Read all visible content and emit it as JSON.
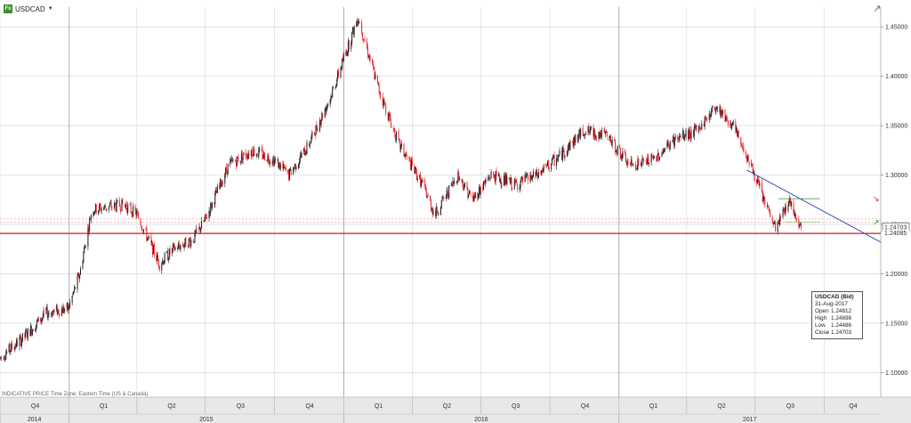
{
  "header": {
    "badge": "Fx",
    "symbol": "USDCAD",
    "caret": "▼"
  },
  "footer_note": "INDICATIVE PRICE   Time Zone: Eastern Time (US & Canada)",
  "last_price_label": "1.24703",
  "support_label": "1.24085",
  "info": {
    "title": "USDCAD (Bid)",
    "date": "31-Aug-2017",
    "rows": [
      {
        "k": "Open",
        "v": "1.24812"
      },
      {
        "k": "High",
        "v": "1.24898"
      },
      {
        "k": "Low",
        "v": "1.24486"
      },
      {
        "k": "Close",
        "v": "1.24703"
      }
    ]
  },
  "colors": {
    "up": "#1a1a1a",
    "down": "#e8202a",
    "trend": "#3b4fb0",
    "support": "#c81e1e",
    "target": "#3c8d2f",
    "grid": "#cfcfcf",
    "axis_bg": "#e8e8e8"
  },
  "icons": {
    "expand": "arrow-up-right-icon",
    "buy": "arrow-up-icon",
    "sell": "arrow-down-icon"
  },
  "chart_data": {
    "type": "candlestick",
    "series": [
      {
        "name": "USDCAD"
      }
    ],
    "ylim": [
      1.075,
      1.47
    ],
    "xlim": [
      "2014-10-01",
      "2017-12-15"
    ],
    "y_ticks": [
      1.1,
      1.15,
      1.2,
      1.25,
      1.3,
      1.35,
      1.4,
      1.45
    ],
    "y_tick_labels": [
      "1.10000",
      "1.15000",
      "1.20000",
      "1.25000",
      "1.30000",
      "1.35000",
      "1.40000",
      "1.45000"
    ],
    "quarters": [
      {
        "label": "Q4",
        "start": "2014-10-01"
      },
      {
        "label": "Q1",
        "start": "2015-01-01"
      },
      {
        "label": "Q2",
        "start": "2015-04-01"
      },
      {
        "label": "Q3",
        "start": "2015-07-01"
      },
      {
        "label": "Q4",
        "start": "2015-10-01"
      },
      {
        "label": "Q1",
        "start": "2016-01-01"
      },
      {
        "label": "Q2",
        "start": "2016-04-01"
      },
      {
        "label": "Q3",
        "start": "2016-07-01"
      },
      {
        "label": "Q4",
        "start": "2016-10-01"
      },
      {
        "label": "Q1",
        "start": "2017-01-01"
      },
      {
        "label": "Q2",
        "start": "2017-04-01"
      },
      {
        "label": "Q3",
        "start": "2017-07-01"
      },
      {
        "label": "Q4",
        "start": "2017-10-01"
      }
    ],
    "years": [
      {
        "label": "2014",
        "start": "2014-10-01"
      },
      {
        "label": "2015",
        "start": "2015-01-01"
      },
      {
        "label": "2016",
        "start": "2016-01-01"
      },
      {
        "label": "2017",
        "start": "2017-01-01"
      }
    ],
    "price_path": [
      [
        "2014-10-01",
        1.115
      ],
      [
        "2014-11-01",
        1.135
      ],
      [
        "2014-12-01",
        1.16
      ],
      [
        "2014-12-31",
        1.165
      ],
      [
        "2015-01-15",
        1.2
      ],
      [
        "2015-01-31",
        1.265
      ],
      [
        "2015-03-15",
        1.27
      ],
      [
        "2015-04-01",
        1.26
      ],
      [
        "2015-05-01",
        1.21
      ],
      [
        "2015-05-20",
        1.225
      ],
      [
        "2015-06-15",
        1.235
      ],
      [
        "2015-07-01",
        1.255
      ],
      [
        "2015-08-01",
        1.31
      ],
      [
        "2015-09-01",
        1.325
      ],
      [
        "2015-10-01",
        1.315
      ],
      [
        "2015-10-20",
        1.3
      ],
      [
        "2015-11-15",
        1.33
      ],
      [
        "2015-12-15",
        1.38
      ],
      [
        "2016-01-20",
        1.46
      ],
      [
        "2016-02-15",
        1.39
      ],
      [
        "2016-03-15",
        1.33
      ],
      [
        "2016-04-15",
        1.29
      ],
      [
        "2016-05-01",
        1.26
      ],
      [
        "2016-06-01",
        1.3
      ],
      [
        "2016-06-20",
        1.275
      ],
      [
        "2016-07-15",
        1.3
      ],
      [
        "2016-08-15",
        1.29
      ],
      [
        "2016-09-15",
        1.3
      ],
      [
        "2016-10-15",
        1.32
      ],
      [
        "2016-11-15",
        1.345
      ],
      [
        "2016-12-15",
        1.34
      ],
      [
        "2017-01-15",
        1.31
      ],
      [
        "2017-02-15",
        1.315
      ],
      [
        "2017-03-15",
        1.335
      ],
      [
        "2017-04-15",
        1.345
      ],
      [
        "2017-05-10",
        1.37
      ],
      [
        "2017-06-01",
        1.35
      ],
      [
        "2017-06-20",
        1.32
      ],
      [
        "2017-07-15",
        1.27
      ],
      [
        "2017-07-28",
        1.245
      ],
      [
        "2017-08-15",
        1.275
      ],
      [
        "2017-08-31",
        1.247
      ]
    ],
    "support_level": 1.24085,
    "last_price": 1.24703,
    "reference_levels": [
      1.2555,
      1.252
    ],
    "target_level": 1.276,
    "trendline": {
      "start": [
        "2017-06-20",
        1.305
      ],
      "end": [
        "2017-12-15",
        1.232
      ]
    }
  }
}
